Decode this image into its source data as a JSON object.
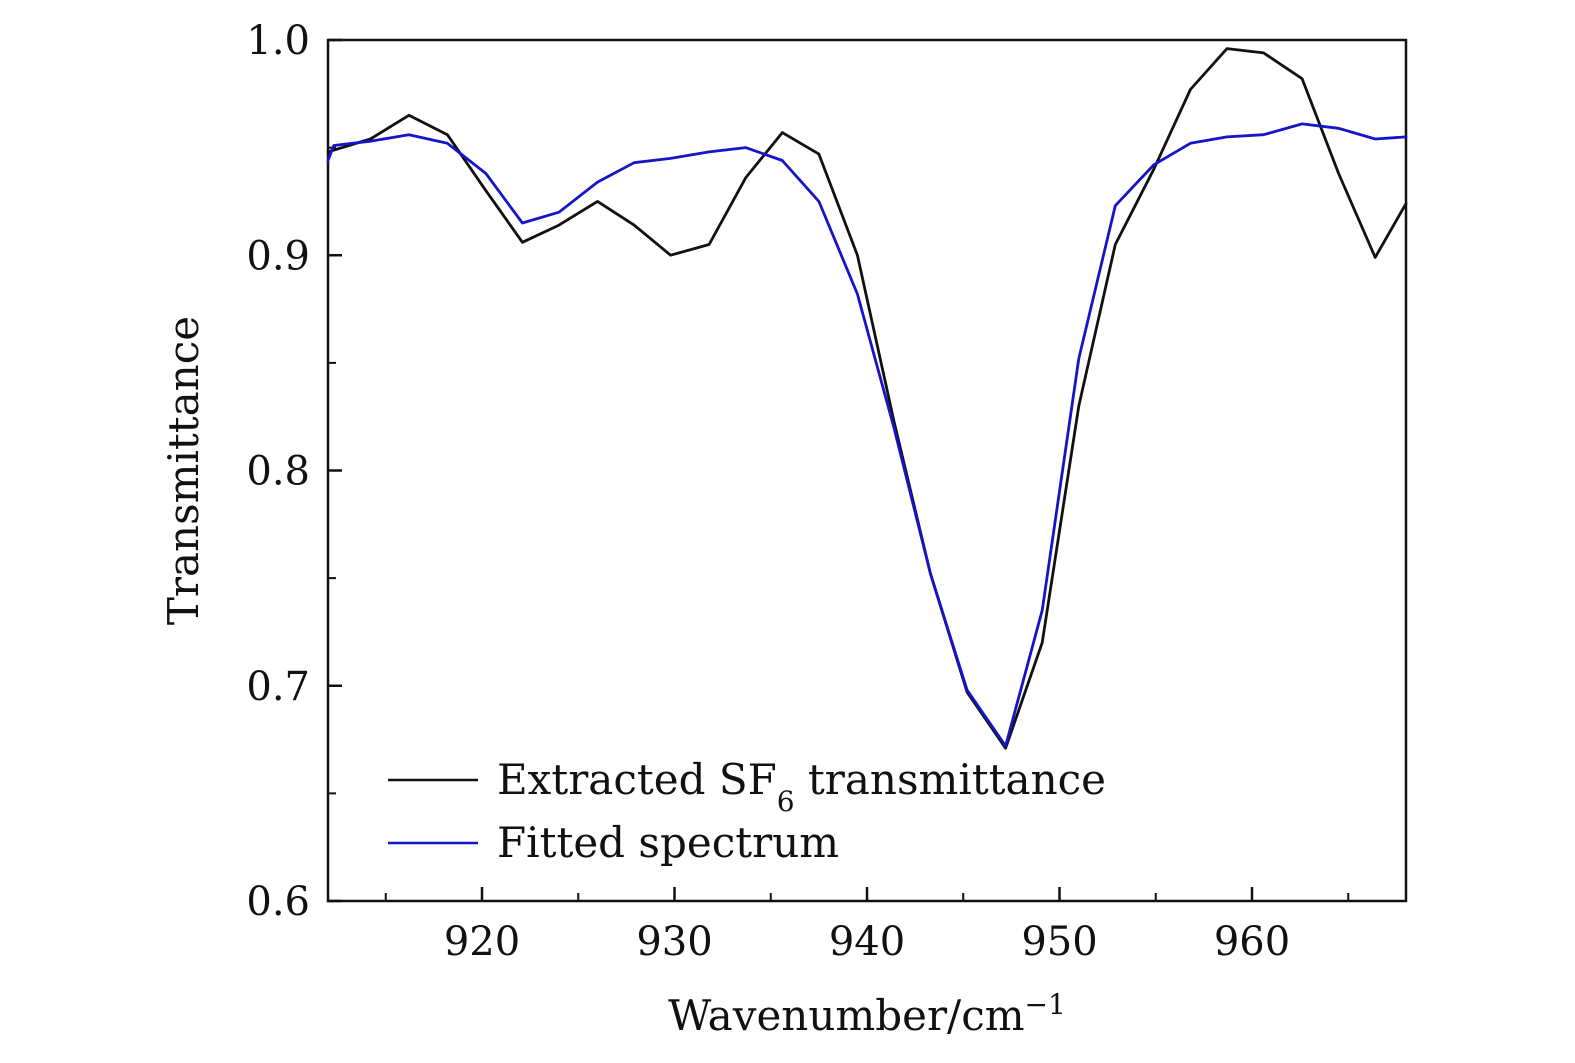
{
  "chart_data": {
    "type": "line",
    "title": "",
    "xlabel": "Wavenumber/cm",
    "xlabel_superscript": "−1",
    "ylabel": "Transmittance",
    "xlim": [
      912,
      968
    ],
    "ylim": [
      0.6,
      1.0
    ],
    "x_ticks": [
      920,
      930,
      940,
      950,
      960
    ],
    "x_minor_ticks": [
      915,
      925,
      935,
      945,
      955,
      965
    ],
    "y_ticks": [
      0.6,
      0.7,
      0.8,
      0.9,
      1.0
    ],
    "y_tick_labels": [
      "0.6",
      "0.7",
      "0.8",
      "0.9",
      "1.0"
    ],
    "y_minor_ticks": [
      0.65,
      0.75,
      0.85,
      0.95
    ],
    "grid": false,
    "legend_position": "bottom-left",
    "series": [
      {
        "name": "Extracted SF6 transmittance",
        "legend_label_main": "Extracted SF",
        "legend_label_subscript": "6",
        "legend_label_suffix": " transmittance",
        "color": "#111111",
        "x": [
          912,
          914.2,
          916.2,
          918.2,
          920.2,
          922.1,
          924.0,
          926.0,
          927.9,
          929.8,
          931.8,
          933.7,
          935.6,
          937.5,
          939.5,
          941.4,
          943.3,
          945.2,
          947.2,
          949.1,
          951.0,
          952.9,
          954.9,
          956.8,
          958.7,
          960.6,
          962.6,
          964.5,
          966.4,
          968.0
        ],
        "y": [
          0.948,
          0.954,
          0.965,
          0.956,
          0.93,
          0.906,
          0.914,
          0.925,
          0.914,
          0.9,
          0.905,
          0.936,
          0.957,
          0.947,
          0.9,
          0.823,
          0.752,
          0.697,
          0.671,
          0.72,
          0.83,
          0.905,
          0.94,
          0.977,
          0.996,
          0.994,
          0.982,
          0.938,
          0.899,
          0.924
        ]
      },
      {
        "name": "Fitted spectrum",
        "legend_label_main": "Fitted spectrum",
        "color": "#1414c8",
        "x": [
          912,
          912.3,
          914.2,
          916.2,
          918.2,
          920.2,
          922.1,
          924.0,
          926.0,
          927.9,
          929.8,
          931.8,
          933.7,
          935.6,
          937.5,
          939.5,
          941.4,
          943.3,
          945.2,
          947.2,
          949.1,
          951.0,
          952.9,
          954.9,
          956.8,
          958.7,
          960.6,
          962.6,
          964.5,
          966.4,
          968.0
        ],
        "y": [
          0.944,
          0.951,
          0.953,
          0.956,
          0.952,
          0.938,
          0.915,
          0.92,
          0.934,
          0.943,
          0.945,
          0.948,
          0.95,
          0.944,
          0.925,
          0.882,
          0.82,
          0.752,
          0.698,
          0.672,
          0.735,
          0.852,
          0.923,
          0.942,
          0.952,
          0.955,
          0.956,
          0.961,
          0.959,
          0.954,
          0.955
        ]
      }
    ]
  }
}
